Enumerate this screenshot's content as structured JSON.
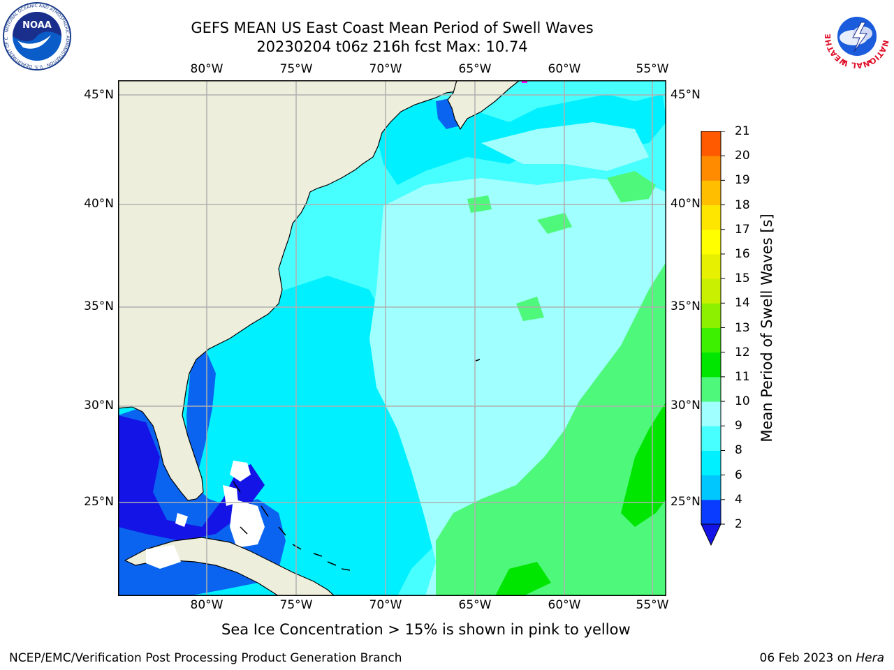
{
  "title_line1": "GEFS MEAN US East Coast Mean Period of Swell Waves",
  "title_line2": "20230204 t06z 216h fcst   Max: 10.74",
  "lon_labels": [
    "80°W",
    "75°W",
    "70°W",
    "65°W",
    "60°W",
    "55°W"
  ],
  "lat_labels": [
    "45°N",
    "40°N",
    "35°N",
    "30°N",
    "25°N"
  ],
  "colorbar": {
    "title": "Mean Period of Swell Waves [s]",
    "ticks": [
      "2",
      "4",
      "6",
      "8",
      "9",
      "10",
      "11",
      "12",
      "13",
      "14",
      "15",
      "16",
      "17",
      "18",
      "19",
      "20",
      "21"
    ],
    "colors": [
      "#0a3cff",
      "#00c8ff",
      "#00f0ff",
      "#48ffff",
      "#a0ffff",
      "#4ef87a",
      "#00e600",
      "#3cf000",
      "#8cf000",
      "#c8f000",
      "#e6f000",
      "#ffff00",
      "#ffe600",
      "#ffbe00",
      "#ff8c00",
      "#ff5a00",
      "#ff2800",
      "#ff0000"
    ],
    "under_color": "#1414e6"
  },
  "note": "Sea Ice Concentration > 15% is shown in pink to yellow",
  "footer_left": "NCEP/EMC/Verification Post Processing Product Generation Branch",
  "footer_right_date": "06 Feb 2023 on ",
  "footer_right_host": "Hera",
  "noaa_logo_text": "NOAA",
  "noaa_ring_text": "NATIONAL OCEANIC AND ATMOSPHERIC ADMINISTRATION · U.S. DEPARTMENT OF COMMERCE",
  "nws_ring_text": "NATIONAL WEATHER SERVICE",
  "map_colors": {
    "land": "#eeeedc",
    "grid": "#b0b0b0",
    "deep_blue": "#1414e6",
    "blue": "#0a64f0",
    "cyan": "#00f0ff",
    "light_cyan": "#48ffff",
    "pale_cyan": "#a0ffff",
    "green": "#4ef87a",
    "bright_green": "#00e600"
  }
}
